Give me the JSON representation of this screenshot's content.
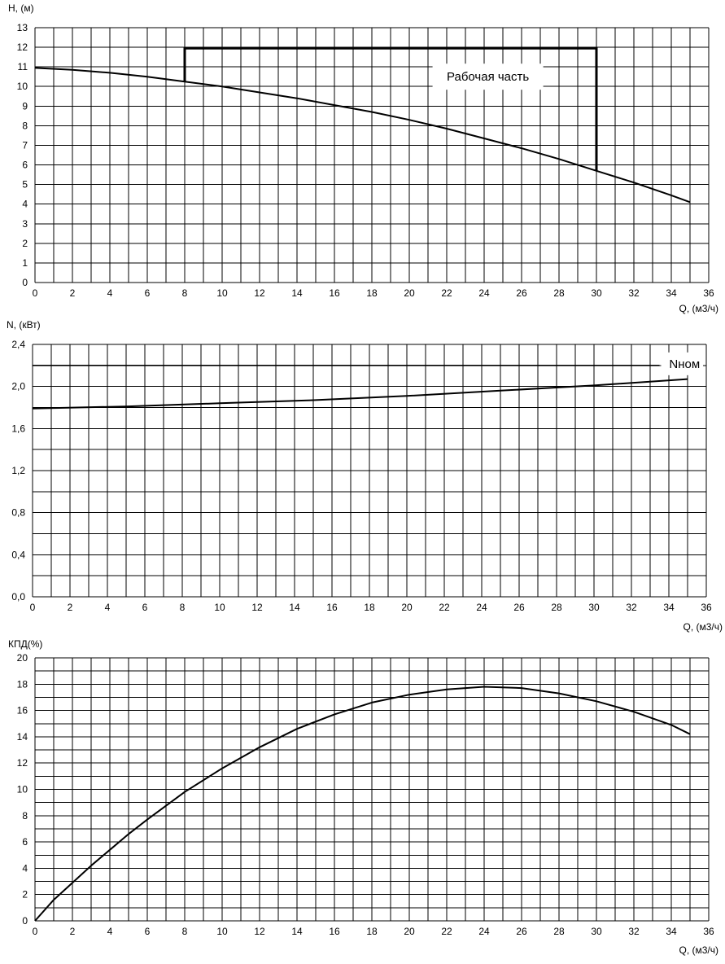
{
  "chart_data": [
    {
      "type": "line",
      "ylabel": "H, (м)",
      "xlabel": "Q, (м3/ч)",
      "xlim": [
        0,
        36
      ],
      "ylim": [
        0,
        13
      ],
      "x_ticks": [
        "0",
        "2",
        "4",
        "6",
        "8",
        "10",
        "12",
        "14",
        "16",
        "18",
        "20",
        "22",
        "24",
        "26",
        "28",
        "30",
        "32",
        "34",
        "36"
      ],
      "y_ticks": [
        "0",
        "1",
        "2",
        "3",
        "4",
        "5",
        "6",
        "7",
        "8",
        "9",
        "10",
        "11",
        "12",
        "13"
      ],
      "grid": true,
      "series": [
        {
          "x": [
            0,
            2,
            4,
            6,
            8,
            10,
            12,
            14,
            16,
            18,
            20,
            22,
            24,
            26,
            28,
            30,
            32,
            34,
            35
          ],
          "y": [
            10.95,
            10.85,
            10.7,
            10.5,
            10.25,
            10.0,
            9.7,
            9.4,
            9.05,
            8.7,
            8.3,
            7.85,
            7.35,
            6.85,
            6.3,
            5.7,
            5.1,
            4.45,
            4.1
          ]
        }
      ],
      "annotation": {
        "text": "Рабочая часть",
        "bracket_x": [
          8,
          30
        ],
        "bracket_top": 11.95,
        "bracket_left_bottom": 10.25,
        "bracket_right_bottom": 5.7
      }
    },
    {
      "type": "line",
      "ylabel": "N, (кВт)",
      "xlabel": "Q, (м3/ч)",
      "xlim": [
        0,
        36
      ],
      "ylim": [
        0,
        2.4
      ],
      "x_ticks": [
        "0",
        "2",
        "4",
        "6",
        "8",
        "10",
        "12",
        "14",
        "16",
        "18",
        "20",
        "22",
        "24",
        "26",
        "28",
        "30",
        "32",
        "34",
        "36"
      ],
      "y_ticks": [
        "0,0",
        "0,4",
        "0,8",
        "1,2",
        "1,6",
        "2,0",
        "2,4"
      ],
      "grid": true,
      "series": [
        {
          "x": [
            0,
            5,
            10,
            15,
            20,
            25,
            30,
            35
          ],
          "y": [
            1.79,
            1.81,
            1.84,
            1.87,
            1.91,
            1.96,
            2.01,
            2.07
          ]
        }
      ],
      "reference_line": {
        "label": "Nном",
        "y": 2.2,
        "x_end": 33.5
      }
    },
    {
      "type": "line",
      "ylabel": "КПД(%)",
      "xlabel": "Q, (м3/ч)",
      "xlim": [
        0,
        36
      ],
      "ylim": [
        0,
        20
      ],
      "x_ticks": [
        "0",
        "2",
        "4",
        "6",
        "8",
        "10",
        "12",
        "14",
        "16",
        "18",
        "20",
        "22",
        "24",
        "26",
        "28",
        "30",
        "32",
        "34",
        "36"
      ],
      "y_ticks": [
        "0",
        "2",
        "4",
        "6",
        "8",
        "10",
        "12",
        "14",
        "16",
        "18",
        "20"
      ],
      "grid": true,
      "series": [
        {
          "x": [
            0,
            1,
            2,
            3,
            4,
            5,
            6,
            8,
            10,
            12,
            14,
            16,
            18,
            20,
            22,
            24,
            26,
            28,
            30,
            32,
            34,
            35
          ],
          "y": [
            0,
            1.6,
            2.9,
            4.2,
            5.4,
            6.6,
            7.7,
            9.8,
            11.6,
            13.2,
            14.6,
            15.7,
            16.6,
            17.2,
            17.6,
            17.8,
            17.7,
            17.3,
            16.7,
            15.9,
            14.9,
            14.2
          ]
        }
      ]
    }
  ]
}
